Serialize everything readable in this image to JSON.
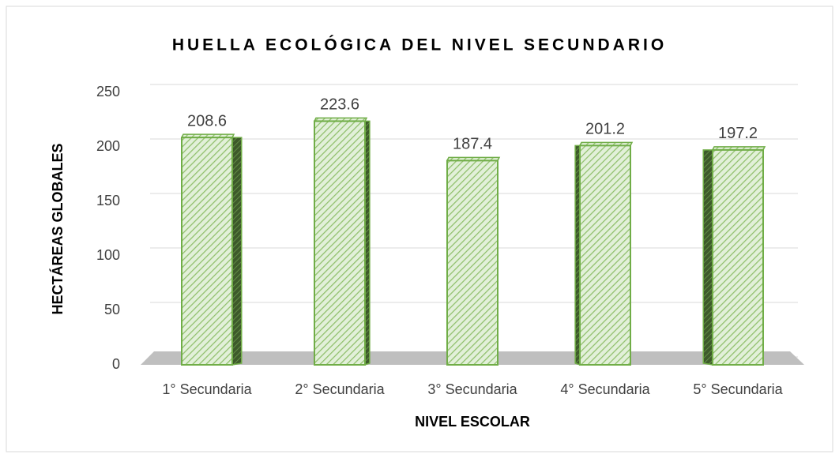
{
  "chart_data": {
    "type": "bar",
    "title": "HUELLA ECOLÓGICA DEL NIVEL SECUNDARIO",
    "x_label": "NIVEL ESCOLAR",
    "y_label": "HECTÁREAS GLOBALES",
    "categories": [
      "1° Secundaria",
      "2° Secundaria",
      "3° Secundaria",
      "4° Secundaria",
      "5° Secundaria"
    ],
    "values": [
      208.6,
      223.6,
      187.4,
      201.2,
      197.2
    ],
    "color": "#70ad47",
    "ylim": [
      0,
      250
    ],
    "yticks": [
      0,
      50,
      100,
      150,
      200,
      250
    ],
    "grid": true
  }
}
